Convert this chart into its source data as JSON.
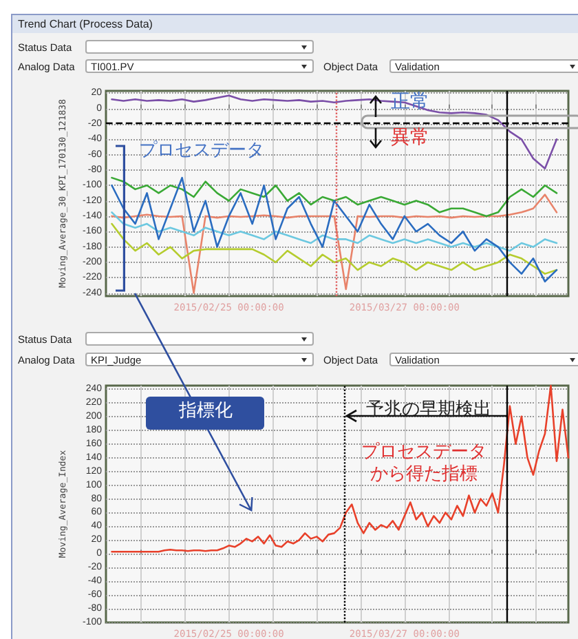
{
  "chart_data": [
    {
      "type": "line",
      "title": "Trend Chart (Process Data)",
      "ylabel": "Moving_Average_30_KPI_170130_121838",
      "annotations": [
        "Status Data",
        "Analog Data",
        "TI001.PV",
        "Object Data",
        "Validation",
        "正常",
        "異常",
        "プロセスデータ"
      ],
      "x": [
        "2015-02-05",
        "2015-02-07",
        "2015-02-09",
        "2015-02-11",
        "2015-02-13",
        "2015-02-15",
        "2015-02-17",
        "2015-02-19",
        "2015-02-21",
        "2015-02-23",
        "2015-02-25",
        "2015-02-27",
        "2015-03-01",
        "2015-03-03",
        "2015-03-05",
        "2015-03-07",
        "2015-03-09",
        "2015-03-11",
        "2015-03-13",
        "2015-03-15",
        "2015-03-17",
        "2015-03-19",
        "2015-03-21",
        "2015-03-23",
        "2015-03-25",
        "2015-03-27",
        "2015-03-29",
        "2015-03-31",
        "2015-04-02",
        "2015-04-04",
        "2015-04-06",
        "2015-04-08",
        "2015-04-10",
        "2015-04-12",
        "2015-04-14",
        "2015-04-16",
        "2015-04-18",
        "2015-04-20",
        "2015-04-22"
      ],
      "series": [
        {
          "color": "#e8836a",
          "values": [
            -140,
            -142,
            -140,
            -138,
            -140,
            -141,
            -140,
            -240,
            -140,
            -142,
            -140,
            -141,
            -140,
            -139,
            -140,
            -142,
            -140,
            -140,
            -140,
            -140,
            -235,
            -140,
            -141,
            -140,
            -140,
            -142,
            -140,
            -141,
            -140,
            -142,
            -140,
            -141,
            -140,
            -140,
            -138,
            -135,
            -130,
            -112,
            -135
          ]
        },
        {
          "color": "#b5cc2e",
          "values": [
            -150,
            -170,
            -185,
            -175,
            -190,
            -180,
            -195,
            -185,
            -183,
            -183,
            -183,
            -183,
            -183,
            -190,
            -200,
            -185,
            -195,
            -205,
            -190,
            -200,
            -195,
            -210,
            -200,
            -205,
            -195,
            -200,
            -210,
            -200,
            -205,
            -210,
            -200,
            -210,
            -205,
            -200,
            -190,
            -195,
            -205,
            -215,
            -210
          ]
        },
        {
          "color": "#6cc8e0",
          "values": [
            -135,
            -150,
            -155,
            -150,
            -160,
            -155,
            -160,
            -165,
            -155,
            -160,
            -165,
            -160,
            -165,
            -170,
            -160,
            -165,
            -170,
            -175,
            -165,
            -170,
            -170,
            -175,
            -165,
            -170,
            -175,
            -170,
            -175,
            -170,
            -175,
            -180,
            -175,
            -180,
            -175,
            -180,
            -185,
            -175,
            -180,
            -170,
            -175
          ]
        },
        {
          "color": "#3aa935",
          "values": [
            -90,
            -95,
            -105,
            -100,
            -110,
            -100,
            -105,
            -115,
            -95,
            -110,
            -120,
            -105,
            -110,
            -115,
            -100,
            -120,
            -110,
            -125,
            -115,
            -120,
            -115,
            -125,
            -120,
            -115,
            -120,
            -125,
            -120,
            -125,
            -135,
            -130,
            -130,
            -135,
            -140,
            -135,
            -115,
            -105,
            -115,
            -100,
            -110
          ]
        },
        {
          "color": "#2a6cc0",
          "values": [
            -100,
            -130,
            -150,
            -110,
            -170,
            -130,
            -90,
            -160,
            -120,
            -180,
            -140,
            -110,
            -150,
            -100,
            -170,
            -130,
            -115,
            -150,
            -180,
            -120,
            -140,
            -160,
            -125,
            -150,
            -170,
            -140,
            -160,
            -150,
            -165,
            -175,
            -160,
            -185,
            -170,
            -180,
            -200,
            -215,
            -195,
            -225,
            -210
          ]
        },
        {
          "color": "#7b4fa8",
          "values": [
            12,
            10,
            12,
            10,
            11,
            10,
            12,
            9,
            11,
            14,
            17,
            12,
            10,
            12,
            11,
            10,
            11,
            9,
            10,
            8,
            10,
            11,
            12,
            10,
            9,
            8,
            3,
            -2,
            -5,
            -6,
            -5,
            -6,
            -8,
            -15,
            -30,
            -40,
            -65,
            -78,
            -40
          ]
        }
      ],
      "xlim": [
        "2015-02-04T00:00",
        "2015-04-24T00:00"
      ],
      "xticks": [
        {
          "value": "2015-02-10T00:00",
          "label": null
        },
        {
          "value": "2015-02-17T12:00",
          "label": null
        },
        {
          "value": "2015-02-25T00:00",
          "label": "2015/02/25 00:00:00"
        },
        {
          "value": "2015-03-04T12:00",
          "label": null
        },
        {
          "value": "2015-03-12T00:00",
          "label": null
        },
        {
          "value": "2015-03-19T12:00",
          "label": null
        },
        {
          "value": "2015-03-27T00:00",
          "label": "2015/03/27 00:00:00"
        },
        {
          "value": "2015-04-03T12:00",
          "label": null
        },
        {
          "value": "2015-04-11T00:00",
          "label": null
        },
        {
          "value": "2015-04-18T12:00",
          "label": null
        }
      ],
      "ylim": [
        -244,
        23
      ],
      "yticks": [
        -240,
        -220,
        -200,
        -180,
        -160,
        -140,
        -120,
        -100,
        -80,
        -60,
        -40,
        -20,
        0,
        20
      ],
      "ref_lines": [
        {
          "axis": "x",
          "value": "2015-03-15T10:00",
          "color": "#e06060",
          "line_style": "dotted"
        },
        {
          "axis": "x",
          "value": "2015-04-13T10:00",
          "color": "#000000",
          "line_style": "solid"
        },
        {
          "axis": "y",
          "value": -18,
          "color": "#000000",
          "line_style": "dashed"
        }
      ],
      "grid": true,
      "marker": "none",
      "line_style": "solid"
    },
    {
      "type": "line",
      "ylabel": "Moving_Average_Index",
      "annotations": [
        "Status Data",
        "Analog Data",
        "KPI_Judge",
        "Object Data",
        "Validation",
        "指標化",
        "予兆の早期検出",
        "プロセスデータから得た指標"
      ],
      "x": [
        "2015-02-05",
        "2015-02-06",
        "2015-02-07",
        "2015-02-08",
        "2015-02-09",
        "2015-02-10",
        "2015-02-11",
        "2015-02-12",
        "2015-02-13",
        "2015-02-14",
        "2015-02-15",
        "2015-02-16",
        "2015-02-17",
        "2015-02-18",
        "2015-02-19",
        "2015-02-20",
        "2015-02-21",
        "2015-02-22",
        "2015-02-23",
        "2015-02-24",
        "2015-02-25",
        "2015-02-26",
        "2015-02-27",
        "2015-02-28",
        "2015-03-01",
        "2015-03-02",
        "2015-03-03",
        "2015-03-04",
        "2015-03-05",
        "2015-03-06",
        "2015-03-07",
        "2015-03-08",
        "2015-03-09",
        "2015-03-10",
        "2015-03-11",
        "2015-03-12",
        "2015-03-13",
        "2015-03-14",
        "2015-03-15",
        "2015-03-16",
        "2015-03-17",
        "2015-03-18",
        "2015-03-19",
        "2015-03-20",
        "2015-03-21",
        "2015-03-22",
        "2015-03-23",
        "2015-03-24",
        "2015-03-25",
        "2015-03-26",
        "2015-03-27",
        "2015-03-28",
        "2015-03-29",
        "2015-03-30",
        "2015-03-31",
        "2015-04-01",
        "2015-04-02",
        "2015-04-03",
        "2015-04-04",
        "2015-04-05",
        "2015-04-06",
        "2015-04-07",
        "2015-04-08",
        "2015-04-09",
        "2015-04-10",
        "2015-04-11",
        "2015-04-12",
        "2015-04-13",
        "2015-04-14",
        "2015-04-15",
        "2015-04-16",
        "2015-04-17",
        "2015-04-18",
        "2015-04-19",
        "2015-04-20",
        "2015-04-21",
        "2015-04-22",
        "2015-04-23",
        "2015-04-24"
      ],
      "series": [
        {
          "color": "#e8402a",
          "values": [
            3,
            3,
            3,
            3,
            3,
            3,
            3,
            3,
            3,
            5,
            6,
            5,
            5,
            4,
            5,
            5,
            4,
            5,
            5,
            8,
            12,
            10,
            15,
            22,
            18,
            25,
            15,
            27,
            12,
            10,
            18,
            15,
            20,
            30,
            22,
            25,
            18,
            28,
            30,
            38,
            60,
            72,
            45,
            30,
            45,
            35,
            42,
            38,
            48,
            35,
            55,
            75,
            50,
            60,
            40,
            55,
            45,
            60,
            50,
            70,
            55,
            85,
            60,
            80,
            70,
            88,
            60,
            130,
            215,
            160,
            200,
            140,
            115,
            150,
            175,
            245,
            135,
            210,
            140
          ]
        }
      ],
      "xlim": [
        "2015-02-04T00:00",
        "2015-04-24T00:00"
      ],
      "xticks": [
        {
          "value": "2015-02-10T00:00",
          "label": null
        },
        {
          "value": "2015-02-17T12:00",
          "label": null
        },
        {
          "value": "2015-02-25T00:00",
          "label": "2015/02/25 00:00:00"
        },
        {
          "value": "2015-03-04T12:00",
          "label": null
        },
        {
          "value": "2015-03-12T00:00",
          "label": null
        },
        {
          "value": "2015-03-19T12:00",
          "label": null
        },
        {
          "value": "2015-03-27T00:00",
          "label": "2015/03/27 00:00:00"
        },
        {
          "value": "2015-04-03T12:00",
          "label": null
        },
        {
          "value": "2015-04-11T00:00",
          "label": null
        },
        {
          "value": "2015-04-18T12:00",
          "label": null
        }
      ],
      "ylim": [
        -100,
        245
      ],
      "yticks": [
        -100,
        -80,
        -60,
        -40,
        -20,
        0,
        20,
        40,
        60,
        80,
        100,
        120,
        140,
        160,
        180,
        200,
        220,
        240
      ],
      "ref_lines": [
        {
          "axis": "x",
          "value": "2015-03-16T17:00",
          "color": "#000000",
          "line_style": "dotted"
        },
        {
          "axis": "x",
          "value": "2015-04-13T10:00",
          "color": "#000000",
          "line_style": "solid"
        }
      ],
      "grid": true,
      "marker": "none",
      "line_style": "solid"
    }
  ]
}
